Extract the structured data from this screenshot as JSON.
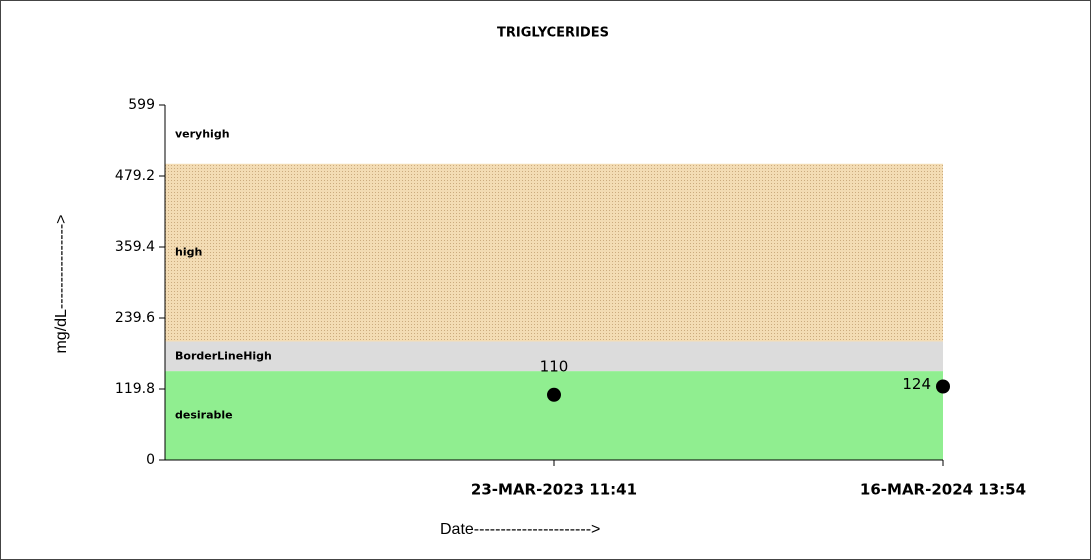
{
  "chart_data": {
    "type": "scatter",
    "title": "TRIGLYCERIDES",
    "x_label": "Date---------------------->",
    "y_label": "mg/dL---------------->",
    "categories": [
      "23-MAR-2023 11:41",
      "16-MAR-2024 13:54"
    ],
    "values": [
      110,
      124
    ],
    "color": "#000000",
    "ylim": [
      0,
      599
    ],
    "yticks": [
      0,
      119.8,
      239.6,
      359.4,
      479.2,
      599
    ],
    "bands": [
      {
        "name": "desirable",
        "from": 0,
        "to": 150,
        "color": "#90ee90"
      },
      {
        "name": "BorderLineHigh",
        "from": 150,
        "to": 200,
        "color": "#dcdcdc"
      },
      {
        "name": "high",
        "from": 200,
        "to": 500,
        "color": "#f3dcb4"
      },
      {
        "name": "veryhigh",
        "from": 500,
        "to": 599,
        "color": "#ffffff"
      }
    ]
  }
}
